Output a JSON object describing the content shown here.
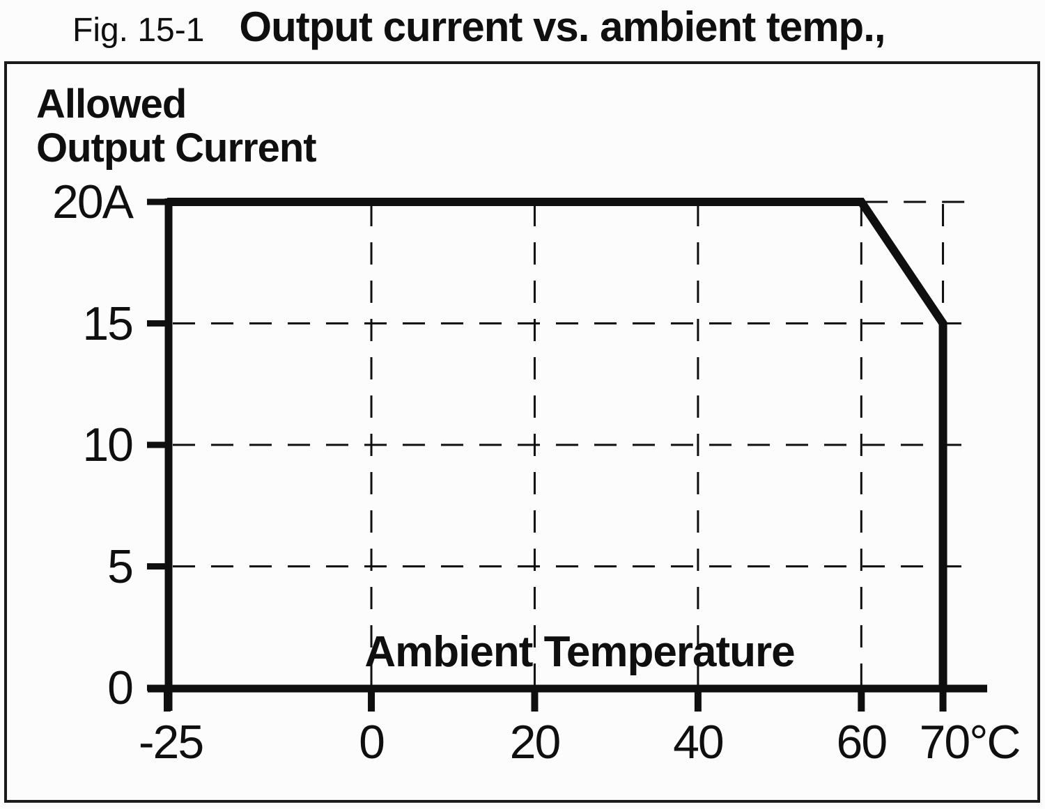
{
  "title": {
    "prefix": "Fig. 15-1",
    "main": "Output current vs. ambient temp.,"
  },
  "colors": {
    "ink": "#0f0f0f",
    "frame": "#1a1a1a",
    "background": "#fcfcfc"
  },
  "chart_data": {
    "type": "line",
    "title": "Output current vs. ambient temp.",
    "xlabel": "Ambient Temperature",
    "ylabel": "Allowed Output Current",
    "ylabel_lines": [
      "Allowed",
      "Output Current"
    ],
    "x_unit": "°C",
    "y_unit": "A",
    "xlim": [
      -25,
      70
    ],
    "ylim": [
      0,
      20
    ],
    "grid": {
      "style": "dashed",
      "vertical_at": [
        0,
        20,
        40,
        60
      ],
      "vertical_partial": [
        {
          "x": 70,
          "y_from": 20,
          "y_to": 15
        }
      ],
      "horizontal_at": [
        15,
        10,
        5
      ],
      "horizontal_partial": [
        {
          "y": 20,
          "x_from": 60.5,
          "x_to": 74
        }
      ]
    },
    "x_ticks": [
      {
        "value": -25,
        "label": "-25",
        "dx": 5
      },
      {
        "value": 0,
        "label": "0",
        "dx": 0
      },
      {
        "value": 20,
        "label": "20",
        "dx": 0
      },
      {
        "value": 40,
        "label": "40",
        "dx": 0
      },
      {
        "value": 60,
        "label": "60",
        "dx": 0
      },
      {
        "value": 70,
        "label": "70°C",
        "dx": 38
      }
    ],
    "y_ticks": [
      {
        "value": 20,
        "label": "20A"
      },
      {
        "value": 15,
        "label": "15"
      },
      {
        "value": 10,
        "label": "10"
      },
      {
        "value": 5,
        "label": "5"
      },
      {
        "value": 0,
        "label": "0"
      }
    ],
    "series": [
      {
        "name": "allowed-output-current",
        "points": [
          [
            -25,
            20
          ],
          [
            60,
            20
          ],
          [
            70,
            15
          ],
          [
            70,
            0
          ]
        ]
      }
    ],
    "legend": "none"
  }
}
